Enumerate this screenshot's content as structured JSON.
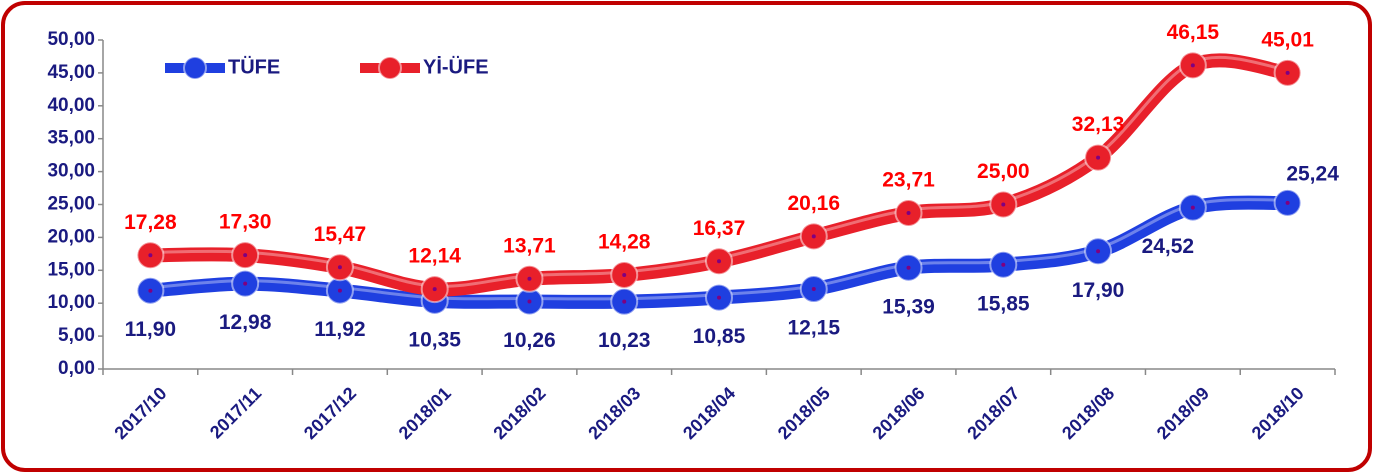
{
  "chart_data": {
    "type": "line",
    "categories": [
      "2017/10",
      "2017/11",
      "2017/12",
      "2018/01",
      "2018/02",
      "2018/03",
      "2018/04",
      "2018/05",
      "2018/06",
      "2018/07",
      "2018/08",
      "2018/09",
      "2018/10"
    ],
    "series": [
      {
        "name": "TÜFE",
        "color": "#1f3fe0",
        "values": [
          11.9,
          12.98,
          11.92,
          10.35,
          10.26,
          10.23,
          10.85,
          12.15,
          15.39,
          15.85,
          17.9,
          24.52,
          25.24
        ],
        "value_labels": [
          "11,90",
          "12,98",
          "11,92",
          "10,35",
          "10,26",
          "10,23",
          "10,85",
          "12,15",
          "15,39",
          "15,85",
          "17,90",
          "24,52",
          "25,24"
        ]
      },
      {
        "name": "Yİ-ÜFE",
        "color": "#e8202a",
        "values": [
          17.28,
          17.3,
          15.47,
          12.14,
          13.71,
          14.28,
          16.37,
          20.16,
          23.71,
          25.0,
          32.13,
          46.15,
          45.01
        ],
        "value_labels": [
          "17,28",
          "17,30",
          "15,47",
          "12,14",
          "13,71",
          "14,28",
          "16,37",
          "20,16",
          "23,71",
          "25,00",
          "32,13",
          "46,15",
          "45,01"
        ]
      }
    ],
    "ylim": [
      0,
      50
    ],
    "yticks": [
      {
        "value": 0,
        "label": "0,00"
      },
      {
        "value": 5,
        "label": "5,00"
      },
      {
        "value": 10,
        "label": "10,00"
      },
      {
        "value": 15,
        "label": "15,00"
      },
      {
        "value": 20,
        "label": "20,00"
      },
      {
        "value": 25,
        "label": "25,00"
      },
      {
        "value": 30,
        "label": "30,00"
      },
      {
        "value": 35,
        "label": "35,00"
      },
      {
        "value": 40,
        "label": "40,00"
      },
      {
        "value": 45,
        "label": "45,00"
      },
      {
        "value": 50,
        "label": "50,00"
      }
    ],
    "legend": "upper left"
  }
}
